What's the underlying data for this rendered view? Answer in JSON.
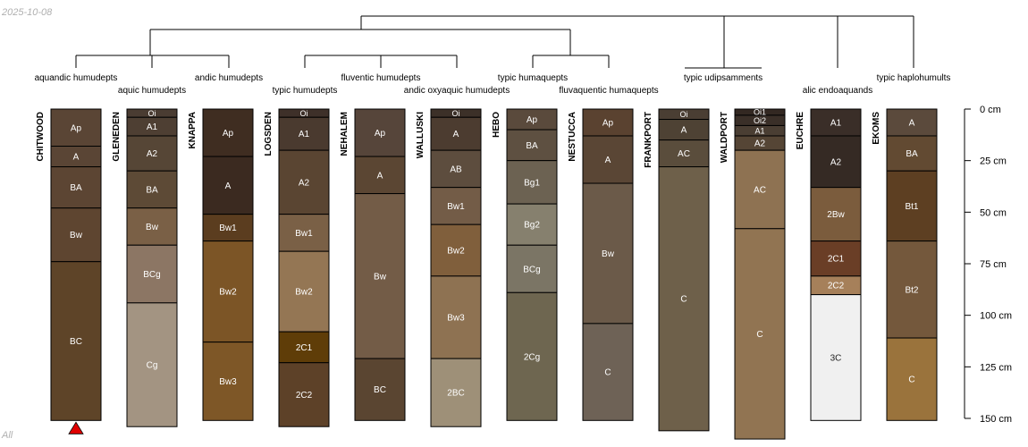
{
  "date": "2025-10-08",
  "footer": "All",
  "depth_axis": {
    "unit": "cm",
    "max": 150,
    "ticks": [
      0,
      25,
      50,
      75,
      100,
      125,
      150
    ],
    "tick_labels": [
      "0 cm",
      "25 cm",
      "50 cm",
      "75 cm",
      "100 cm",
      "125 cm",
      "150 cm"
    ]
  },
  "profiles": [
    {
      "id": "CHITWOOD",
      "subgroup": "aquandic humudepts",
      "marker": "red-triangle",
      "horizons": [
        {
          "name": "Ap",
          "top": 0,
          "bottom": 18,
          "color": "#5a4535"
        },
        {
          "name": "A",
          "top": 18,
          "bottom": 28,
          "color": "#5a4535"
        },
        {
          "name": "BA",
          "top": 28,
          "bottom": 48,
          "color": "#5c4533"
        },
        {
          "name": "Bw",
          "top": 48,
          "bottom": 74,
          "color": "#5e4530"
        },
        {
          "name": "BC",
          "top": 74,
          "bottom": 151,
          "color": "#5e4428"
        }
      ]
    },
    {
      "id": "GLENEDEN",
      "subgroup": "aquic humudepts",
      "horizons": [
        {
          "name": "Oi",
          "top": 0,
          "bottom": 4,
          "color": "#4a3c32"
        },
        {
          "name": "A1",
          "top": 4,
          "bottom": 13,
          "color": "#4e3f33"
        },
        {
          "name": "A2",
          "top": 13,
          "bottom": 30,
          "color": "#564636"
        },
        {
          "name": "BA",
          "top": 30,
          "bottom": 48,
          "color": "#5d4a36"
        },
        {
          "name": "Bw",
          "top": 48,
          "bottom": 66,
          "color": "#7a6046"
        },
        {
          "name": "BCg",
          "top": 66,
          "bottom": 94,
          "color": "#8c7664"
        },
        {
          "name": "Cg",
          "top": 94,
          "bottom": 154,
          "color": "#a39482"
        }
      ]
    },
    {
      "id": "KNAPPA",
      "subgroup": "andic humudepts",
      "horizons": [
        {
          "name": "Ap",
          "top": 0,
          "bottom": 23,
          "color": "#3f2d21"
        },
        {
          "name": "A",
          "top": 23,
          "bottom": 51,
          "color": "#3b2a20"
        },
        {
          "name": "Bw1",
          "top": 51,
          "bottom": 64,
          "color": "#5b3d1f"
        },
        {
          "name": "Bw2",
          "top": 64,
          "bottom": 113,
          "color": "#7c5526"
        },
        {
          "name": "Bw3",
          "top": 113,
          "bottom": 151,
          "color": "#7e5727"
        }
      ]
    },
    {
      "id": "LOGSDEN",
      "subgroup": "typic humudepts",
      "horizons": [
        {
          "name": "Oi",
          "top": 0,
          "bottom": 4,
          "color": "#3e3029"
        },
        {
          "name": "A1",
          "top": 4,
          "bottom": 20,
          "color": "#4a3a2f"
        },
        {
          "name": "A2",
          "top": 20,
          "bottom": 51,
          "color": "#5a4532"
        },
        {
          "name": "Bw1",
          "top": 51,
          "bottom": 69,
          "color": "#7a6046"
        },
        {
          "name": "Bw2",
          "top": 69,
          "bottom": 108,
          "color": "#947654"
        },
        {
          "name": "2C1",
          "top": 108,
          "bottom": 123,
          "color": "#5f3d08"
        },
        {
          "name": "2C2",
          "top": 123,
          "bottom": 154,
          "color": "#5d4128"
        }
      ]
    },
    {
      "id": "NEHALEM",
      "subgroup": "fluventic humudepts",
      "horizons": [
        {
          "name": "Ap",
          "top": 0,
          "bottom": 23,
          "color": "#56453a"
        },
        {
          "name": "A",
          "top": 23,
          "bottom": 41,
          "color": "#5b4633"
        },
        {
          "name": "Bw",
          "top": 41,
          "bottom": 121,
          "color": "#735c47"
        },
        {
          "name": "BC",
          "top": 121,
          "bottom": 151,
          "color": "#5a4531"
        }
      ]
    },
    {
      "id": "WALLUSKI",
      "subgroup": "andic oxyaquic humudepts",
      "horizons": [
        {
          "name": "Oi",
          "top": 0,
          "bottom": 4,
          "color": "#3c3028"
        },
        {
          "name": "A",
          "top": 4,
          "bottom": 20,
          "color": "#4c3c30"
        },
        {
          "name": "AB",
          "top": 20,
          "bottom": 38,
          "color": "#5d4d3e"
        },
        {
          "name": "Bw1",
          "top": 38,
          "bottom": 56,
          "color": "#735c47"
        },
        {
          "name": "Bw2",
          "top": 56,
          "bottom": 81,
          "color": "#805f3c"
        },
        {
          "name": "Bw3",
          "top": 81,
          "bottom": 121,
          "color": "#8e7252"
        },
        {
          "name": "2BC",
          "top": 121,
          "bottom": 154,
          "color": "#9e9078"
        }
      ]
    },
    {
      "id": "HEBO",
      "subgroup": "typic humaquepts",
      "horizons": [
        {
          "name": "Ap",
          "top": 0,
          "bottom": 10,
          "color": "#5a4a3c"
        },
        {
          "name": "BA",
          "top": 10,
          "bottom": 25,
          "color": "#5e5041"
        },
        {
          "name": "Bg1",
          "top": 25,
          "bottom": 46,
          "color": "#6c6252"
        },
        {
          "name": "Bg2",
          "top": 46,
          "bottom": 66,
          "color": "#86806e"
        },
        {
          "name": "BCg",
          "top": 66,
          "bottom": 89,
          "color": "#7b7565"
        },
        {
          "name": "2Cg",
          "top": 89,
          "bottom": 151,
          "color": "#6e6650"
        }
      ]
    },
    {
      "id": "NESTUCCA",
      "subgroup": "fluvaquentic humaquepts",
      "horizons": [
        {
          "name": "Ap",
          "top": 0,
          "bottom": 13,
          "color": "#5a4230"
        },
        {
          "name": "A",
          "top": 13,
          "bottom": 36,
          "color": "#5a4635"
        },
        {
          "name": "Bw",
          "top": 36,
          "bottom": 104,
          "color": "#6b5a49"
        },
        {
          "name": "C",
          "top": 104,
          "bottom": 151,
          "color": "#6e6256"
        }
      ]
    },
    {
      "id": "FRANKPORT",
      "subgroup": "typic udipsamments",
      "horizons": [
        {
          "name": "Oi",
          "top": 0,
          "bottom": 5,
          "color": "#4a3e33"
        },
        {
          "name": "A",
          "top": 5,
          "bottom": 15,
          "color": "#4e4234"
        },
        {
          "name": "AC",
          "top": 15,
          "bottom": 28,
          "color": "#5a4d3c"
        },
        {
          "name": "C",
          "top": 28,
          "bottom": 156,
          "color": "#6e604a"
        }
      ]
    },
    {
      "id": "WALDPORT",
      "subgroup": "",
      "horizons": [
        {
          "name": "Oi1",
          "top": 0,
          "bottom": 3,
          "color": "#332822"
        },
        {
          "name": "Oi2",
          "top": 3,
          "bottom": 8,
          "color": "#3a2f28"
        },
        {
          "name": "A1",
          "top": 8,
          "bottom": 13,
          "color": "#4a3e33"
        },
        {
          "name": "A2",
          "top": 13,
          "bottom": 20,
          "color": "#554535"
        },
        {
          "name": "AC",
          "top": 20,
          "bottom": 58,
          "color": "#8e7252"
        },
        {
          "name": "C",
          "top": 58,
          "bottom": 160,
          "color": "#917452"
        }
      ]
    },
    {
      "id": "EUCHRE",
      "subgroup": "alic endoaquands",
      "horizons": [
        {
          "name": "A1",
          "top": 0,
          "bottom": 13,
          "color": "#3a2e28"
        },
        {
          "name": "A2",
          "top": 13,
          "bottom": 38,
          "color": "#352a24"
        },
        {
          "name": "2Bw",
          "top": 38,
          "bottom": 64,
          "color": "#7b5c3d"
        },
        {
          "name": "2C1",
          "top": 64,
          "bottom": 81,
          "color": "#6a3e26"
        },
        {
          "name": "2C2",
          "top": 81,
          "bottom": 90,
          "color": "#a6805a"
        },
        {
          "name": "3C",
          "top": 90,
          "bottom": 151,
          "color": "#f0f0f0"
        }
      ]
    },
    {
      "id": "EKOMS",
      "subgroup": "typic haplohumults",
      "horizons": [
        {
          "name": "A",
          "top": 0,
          "bottom": 13,
          "color": "#5b4a3c"
        },
        {
          "name": "BA",
          "top": 13,
          "bottom": 30,
          "color": "#624a32"
        },
        {
          "name": "Bt1",
          "top": 30,
          "bottom": 64,
          "color": "#5d3f22"
        },
        {
          "name": "Bt2",
          "top": 64,
          "bottom": 111,
          "color": "#74583c"
        },
        {
          "name": "C",
          "top": 111,
          "bottom": 151,
          "color": "#9a733c"
        }
      ]
    }
  ],
  "colors": {
    "line": "#000000",
    "horizon_text": "#ffffff",
    "horizon_text_dark": "#222222",
    "marker": "#e00000"
  }
}
